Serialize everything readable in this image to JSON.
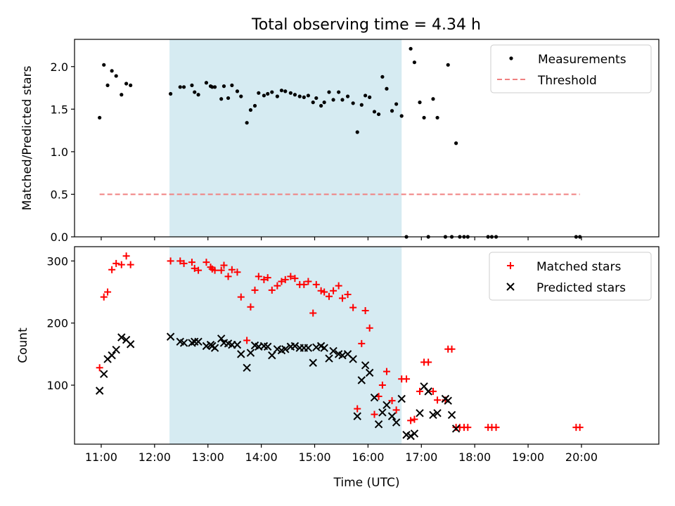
{
  "title": "Total observing time = 4.34 h",
  "colors": {
    "span": "#add8e6",
    "matched": "#ff0000",
    "predicted": "#000000",
    "threshold": "#f08080",
    "measurement": "#000000"
  },
  "chart_data": [
    {
      "type": "scatter",
      "ylabel": "Matched/Predicted stars",
      "xlabel": "",
      "xlim": [
        10.5,
        21.45
      ],
      "ylim": [
        0.0,
        2.32
      ],
      "yticks": [
        0.0,
        0.5,
        1.0,
        1.5,
        2.0
      ],
      "ytick_labels": [
        "0.0",
        "0.5",
        "1.0",
        "1.5",
        "2.0"
      ],
      "observing_span": {
        "start": 12.28,
        "end": 16.63
      },
      "legend_position": "top-right",
      "threshold": {
        "name": "Threshold",
        "value": 0.5,
        "x": [
          10.97,
          19.97
        ],
        "style": "dashed"
      },
      "series": [
        {
          "name": "Measurements",
          "points": [
            [
              10.97,
              1.4
            ],
            [
              11.05,
              2.02
            ],
            [
              11.12,
              1.78
            ],
            [
              11.2,
              1.95
            ],
            [
              11.28,
              1.89
            ],
            [
              11.38,
              1.67
            ],
            [
              11.47,
              1.8
            ],
            [
              11.55,
              1.78
            ],
            [
              12.3,
              1.68
            ],
            [
              12.48,
              1.76
            ],
            [
              12.55,
              1.76
            ],
            [
              12.7,
              1.78
            ],
            [
              12.75,
              1.7
            ],
            [
              12.82,
              1.67
            ],
            [
              12.97,
              1.81
            ],
            [
              13.05,
              1.77
            ],
            [
              13.08,
              1.76
            ],
            [
              13.13,
              1.76
            ],
            [
              13.25,
              1.62
            ],
            [
              13.3,
              1.77
            ],
            [
              13.38,
              1.63
            ],
            [
              13.45,
              1.78
            ],
            [
              13.55,
              1.71
            ],
            [
              13.62,
              1.65
            ],
            [
              13.73,
              1.34
            ],
            [
              13.8,
              1.49
            ],
            [
              13.88,
              1.54
            ],
            [
              13.95,
              1.69
            ],
            [
              14.05,
              1.66
            ],
            [
              14.12,
              1.68
            ],
            [
              14.2,
              1.7
            ],
            [
              14.3,
              1.65
            ],
            [
              14.38,
              1.72
            ],
            [
              14.45,
              1.71
            ],
            [
              14.55,
              1.69
            ],
            [
              14.63,
              1.67
            ],
            [
              14.72,
              1.65
            ],
            [
              14.8,
              1.64
            ],
            [
              14.88,
              1.66
            ],
            [
              14.97,
              1.58
            ],
            [
              15.03,
              1.63
            ],
            [
              15.12,
              1.54
            ],
            [
              15.18,
              1.58
            ],
            [
              15.27,
              1.7
            ],
            [
              15.35,
              1.61
            ],
            [
              15.45,
              1.7
            ],
            [
              15.52,
              1.61
            ],
            [
              15.62,
              1.65
            ],
            [
              15.72,
              1.57
            ],
            [
              15.8,
              1.23
            ],
            [
              15.88,
              1.55
            ],
            [
              15.95,
              1.66
            ],
            [
              16.03,
              1.64
            ],
            [
              16.12,
              1.47
            ],
            [
              16.2,
              1.44
            ],
            [
              16.27,
              1.88
            ],
            [
              16.35,
              1.74
            ],
            [
              16.45,
              1.48
            ],
            [
              16.53,
              1.56
            ],
            [
              16.63,
              1.42
            ],
            [
              16.72,
              0.0
            ],
            [
              16.8,
              2.21
            ],
            [
              16.87,
              2.05
            ],
            [
              16.97,
              1.58
            ],
            [
              17.05,
              1.4
            ],
            [
              17.13,
              0.0
            ],
            [
              17.22,
              1.62
            ],
            [
              17.3,
              1.4
            ],
            [
              17.45,
              0.0
            ],
            [
              17.5,
              2.02
            ],
            [
              17.57,
              0.0
            ],
            [
              17.65,
              1.1
            ],
            [
              17.72,
              0.0
            ],
            [
              17.8,
              0.0
            ],
            [
              17.87,
              0.0
            ],
            [
              18.25,
              0.0
            ],
            [
              18.32,
              0.0
            ],
            [
              18.4,
              0.0
            ],
            [
              19.9,
              0.0
            ],
            [
              19.97,
              0.0
            ]
          ]
        }
      ]
    },
    {
      "type": "scatter",
      "xlabel": "Time (UTC)",
      "ylabel": "Count",
      "xlim": [
        10.5,
        21.45
      ],
      "ylim": [
        5,
        323
      ],
      "yticks": [
        100,
        200,
        300
      ],
      "ytick_labels": [
        "100",
        "200",
        "300"
      ],
      "xticks": [
        11,
        12,
        13,
        14,
        15,
        16,
        17,
        18,
        19,
        20
      ],
      "xtick_labels": [
        "11:00",
        "12:00",
        "13:00",
        "14:00",
        "15:00",
        "16:00",
        "17:00",
        "18:00",
        "19:00",
        "20:00"
      ],
      "observing_span": {
        "start": 12.28,
        "end": 16.63
      },
      "legend_position": "top-right",
      "series": [
        {
          "name": "Matched stars",
          "marker": "plus",
          "points": [
            [
              10.97,
              128
            ],
            [
              11.05,
              242
            ],
            [
              11.12,
              250
            ],
            [
              11.2,
              286
            ],
            [
              11.28,
              296
            ],
            [
              11.38,
              294
            ],
            [
              11.47,
              308
            ],
            [
              11.55,
              294
            ],
            [
              12.3,
              300
            ],
            [
              12.48,
              300
            ],
            [
              12.55,
              296
            ],
            [
              12.7,
              298
            ],
            [
              12.75,
              288
            ],
            [
              12.82,
              285
            ],
            [
              12.97,
              298
            ],
            [
              13.05,
              290
            ],
            [
              13.08,
              287
            ],
            [
              13.13,
              285
            ],
            [
              13.25,
              285
            ],
            [
              13.3,
              293
            ],
            [
              13.38,
              275
            ],
            [
              13.45,
              286
            ],
            [
              13.55,
              282
            ],
            [
              13.62,
              242
            ],
            [
              13.73,
              172
            ],
            [
              13.8,
              226
            ],
            [
              13.88,
              253
            ],
            [
              13.95,
              275
            ],
            [
              14.05,
              270
            ],
            [
              14.12,
              273
            ],
            [
              14.2,
              253
            ],
            [
              14.3,
              260
            ],
            [
              14.38,
              267
            ],
            [
              14.45,
              270
            ],
            [
              14.55,
              275
            ],
            [
              14.63,
              272
            ],
            [
              14.72,
              262
            ],
            [
              14.8,
              262
            ],
            [
              14.88,
              267
            ],
            [
              14.97,
              216
            ],
            [
              15.03,
              262
            ],
            [
              15.12,
              252
            ],
            [
              15.18,
              250
            ],
            [
              15.27,
              243
            ],
            [
              15.35,
              252
            ],
            [
              15.45,
              260
            ],
            [
              15.52,
              240
            ],
            [
              15.62,
              246
            ],
            [
              15.72,
              225
            ],
            [
              15.8,
              62
            ],
            [
              15.88,
              167
            ],
            [
              15.95,
              220
            ],
            [
              16.03,
              192
            ],
            [
              16.12,
              53
            ],
            [
              16.2,
              82
            ],
            [
              16.27,
              100
            ],
            [
              16.35,
              122
            ],
            [
              16.45,
              75
            ],
            [
              16.53,
              60
            ],
            [
              16.63,
              110
            ],
            [
              16.72,
              110
            ],
            [
              16.8,
              43
            ],
            [
              16.87,
              45
            ],
            [
              16.97,
              90
            ],
            [
              17.05,
              137
            ],
            [
              17.13,
              137
            ],
            [
              17.22,
              90
            ],
            [
              17.3,
              76
            ],
            [
              17.45,
              76
            ],
            [
              17.5,
              158
            ],
            [
              17.57,
              158
            ],
            [
              17.65,
              32
            ],
            [
              17.72,
              32
            ],
            [
              17.8,
              32
            ],
            [
              17.87,
              32
            ],
            [
              18.25,
              32
            ],
            [
              18.32,
              32
            ],
            [
              18.4,
              32
            ],
            [
              19.9,
              32
            ],
            [
              19.97,
              32
            ]
          ]
        },
        {
          "name": "Predicted stars",
          "marker": "x",
          "points": [
            [
              10.97,
              91
            ],
            [
              11.05,
              118
            ],
            [
              11.12,
              142
            ],
            [
              11.2,
              148
            ],
            [
              11.28,
              157
            ],
            [
              11.38,
              177
            ],
            [
              11.47,
              173
            ],
            [
              11.55,
              166
            ],
            [
              12.3,
              178
            ],
            [
              12.48,
              170
            ],
            [
              12.55,
              168
            ],
            [
              12.7,
              168
            ],
            [
              12.75,
              170
            ],
            [
              12.82,
              170
            ],
            [
              12.97,
              163
            ],
            [
              13.05,
              165
            ],
            [
              13.08,
              163
            ],
            [
              13.13,
              160
            ],
            [
              13.25,
              175
            ],
            [
              13.3,
              168
            ],
            [
              13.38,
              167
            ],
            [
              13.45,
              165
            ],
            [
              13.55,
              165
            ],
            [
              13.62,
              150
            ],
            [
              13.73,
              128
            ],
            [
              13.8,
              152
            ],
            [
              13.88,
              164
            ],
            [
              13.95,
              162
            ],
            [
              14.05,
              163
            ],
            [
              14.12,
              162
            ],
            [
              14.2,
              148
            ],
            [
              14.3,
              158
            ],
            [
              14.38,
              156
            ],
            [
              14.45,
              158
            ],
            [
              14.55,
              162
            ],
            [
              14.63,
              163
            ],
            [
              14.72,
              160
            ],
            [
              14.8,
              160
            ],
            [
              14.88,
              160
            ],
            [
              14.97,
              136
            ],
            [
              15.03,
              161
            ],
            [
              15.12,
              163
            ],
            [
              15.18,
              160
            ],
            [
              15.27,
              143
            ],
            [
              15.35,
              155
            ],
            [
              15.45,
              150
            ],
            [
              15.52,
              148
            ],
            [
              15.62,
              150
            ],
            [
              15.72,
              142
            ],
            [
              15.8,
              50
            ],
            [
              15.88,
              108
            ],
            [
              15.95,
              132
            ],
            [
              16.03,
              120
            ],
            [
              16.12,
              80
            ],
            [
              16.2,
              37
            ],
            [
              16.27,
              56
            ],
            [
              16.35,
              68
            ],
            [
              16.45,
              50
            ],
            [
              16.53,
              40
            ],
            [
              16.63,
              78
            ],
            [
              16.72,
              20
            ],
            [
              16.8,
              18
            ],
            [
              16.87,
              22
            ],
            [
              16.97,
              55
            ],
            [
              17.05,
              98
            ],
            [
              17.13,
              90
            ],
            [
              17.22,
              52
            ],
            [
              17.3,
              55
            ],
            [
              17.45,
              78
            ],
            [
              17.5,
              75
            ],
            [
              17.57,
              52
            ],
            [
              17.65,
              30
            ]
          ]
        }
      ]
    }
  ]
}
